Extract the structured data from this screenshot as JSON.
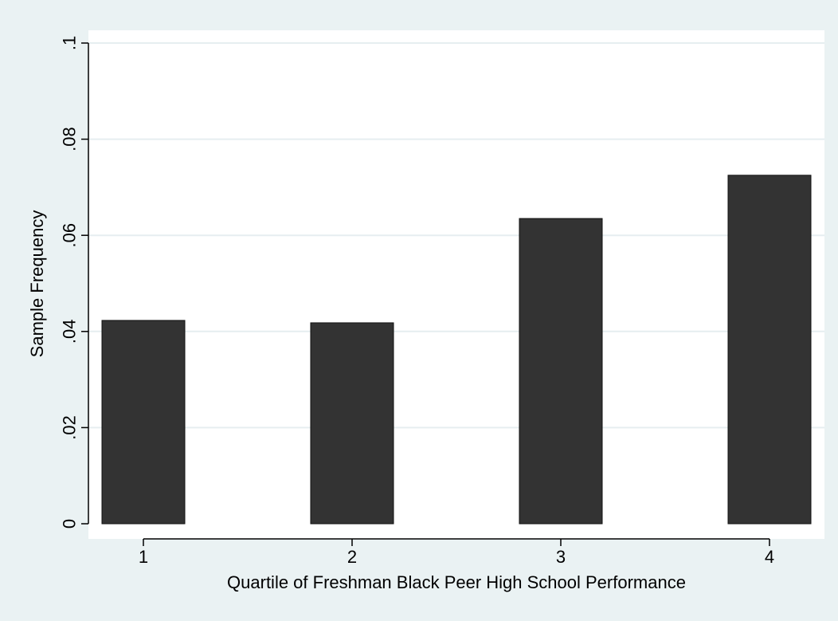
{
  "chart_data": {
    "type": "bar",
    "categories": [
      "1",
      "2",
      "3",
      "4"
    ],
    "values": [
      0.0423,
      0.0418,
      0.0635,
      0.0725
    ],
    "xlabel": "Quartile of Freshman Black Peer High School Performance",
    "ylabel": "Sample Frequency",
    "ylim": [
      0,
      0.1
    ],
    "yticks": [
      {
        "value": 0,
        "label": "0"
      },
      {
        "value": 0.02,
        "label": ".02"
      },
      {
        "value": 0.04,
        "label": ".04"
      },
      {
        "value": 0.06,
        "label": ".06"
      },
      {
        "value": 0.08,
        "label": ".08"
      },
      {
        "value": 0.1,
        "label": ".1"
      }
    ],
    "grid": true,
    "legend": "none",
    "colors": {
      "background": "#eaf2f3",
      "plot_area": "#ffffff",
      "bar": "#333333",
      "bar_outline": "#111111",
      "grid": "#e6eef0",
      "axis": "#000000"
    }
  }
}
